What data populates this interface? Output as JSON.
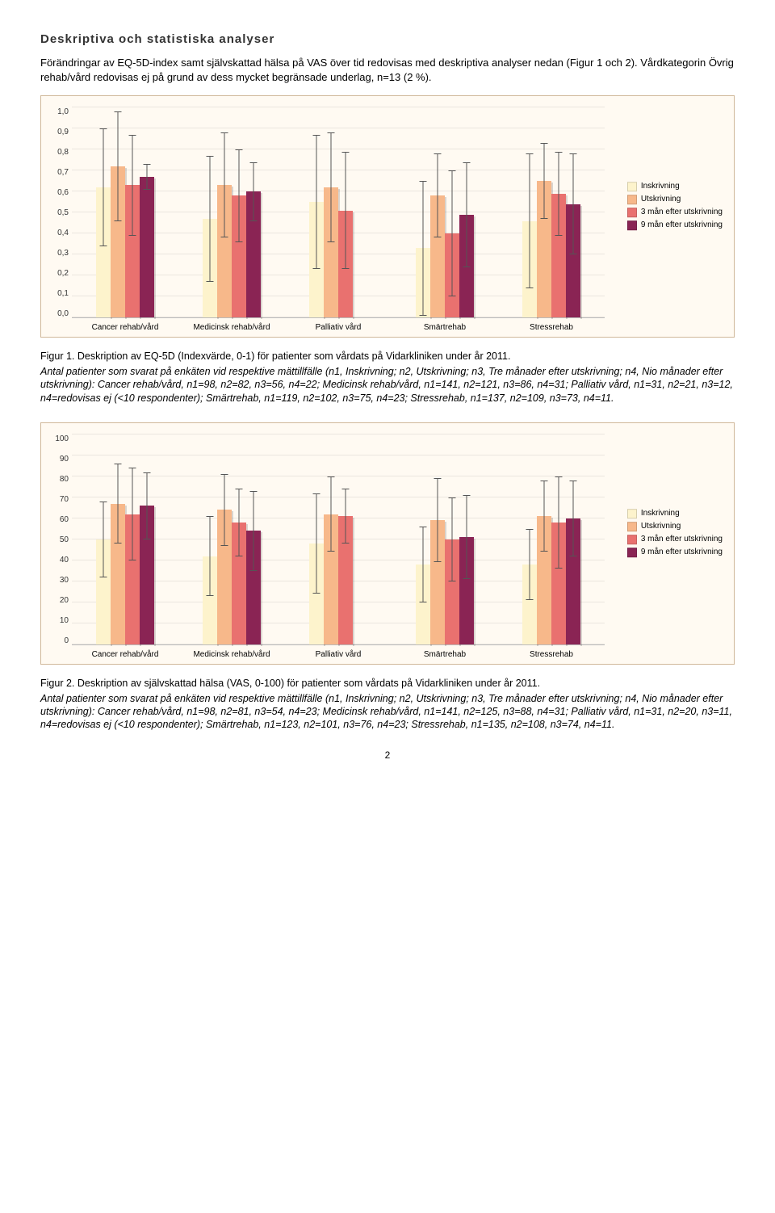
{
  "heading": "Deskriptiva och statistiska analyser",
  "intro": "Förändringar av EQ-5D-index samt självskattad hälsa på VAS över tid redovisas med deskriptiva analyser nedan (Figur 1 och 2). Vårdkategorin Övrig rehab/vård redovisas ej på grund av dess mycket begränsade underlag, n=13 (2 %).",
  "legend": {
    "items": [
      {
        "label": "Inskrivning",
        "color": "#fdf3cc"
      },
      {
        "label": "Utskrivning",
        "color": "#f7b88a"
      },
      {
        "label": "3 mån efter utskrivning",
        "color": "#e9716f"
      },
      {
        "label": "9 mån efter utskrivning",
        "color": "#8a2454"
      }
    ]
  },
  "chart1": {
    "type": "bar",
    "ymin": 0,
    "ymax": 1,
    "ystep": 0.1,
    "categories": [
      "Cancer rehab/vård",
      "Medicinsk rehab/vård",
      "Palliativ vård",
      "Smärtrehab",
      "Stressrehab"
    ],
    "series_colors": [
      "#fdf3cc",
      "#f7b88a",
      "#e9716f",
      "#8a2454"
    ],
    "values": [
      [
        0.62,
        0.72,
        0.63,
        0.67
      ],
      [
        0.47,
        0.63,
        0.58,
        0.6
      ],
      [
        0.55,
        0.62,
        0.51,
        null
      ],
      [
        0.33,
        0.58,
        0.4,
        0.49
      ],
      [
        0.46,
        0.65,
        0.59,
        0.54
      ]
    ],
    "errors": [
      [
        0.28,
        0.26,
        0.24,
        0.06
      ],
      [
        0.3,
        0.25,
        0.22,
        0.14
      ],
      [
        0.32,
        0.26,
        0.28,
        null
      ],
      [
        0.32,
        0.2,
        0.3,
        0.25
      ],
      [
        0.32,
        0.18,
        0.2,
        0.24
      ]
    ],
    "caption_title": "Figur 1. Deskription av EQ-5D (Indexvärde, 0-1) för patienter som vårdats på Vidarkliniken under år 2011.",
    "caption": "Antal patienter som svarat på enkäten vid respektive mättillfälle (n1, Inskrivning; n2, Utskrivning; n3, Tre månader efter utskrivning; n4, Nio månader efter utskrivning): Cancer rehab/vård, n1=98, n2=82, n3=56, n4=22; Medicinsk rehab/vård, n1=141, n2=121, n3=86, n4=31; Palliativ vård, n1=31, n2=21, n3=12, n4=redovisas ej (<10 respondenter); Smärtrehab, n1=119, n2=102, n3=75, n4=23; Stressrehab, n1=137, n2=109, n3=73, n4=11."
  },
  "chart2": {
    "type": "bar",
    "ymin": 0,
    "ymax": 100,
    "ystep": 10,
    "categories": [
      "Cancer rehab/vård",
      "Medicinsk rehab/vård",
      "Palliativ vård",
      "Smärtrehab",
      "Stressrehab"
    ],
    "series_colors": [
      "#fdf3cc",
      "#f7b88a",
      "#e9716f",
      "#8a2454"
    ],
    "values": [
      [
        50,
        67,
        62,
        66
      ],
      [
        42,
        64,
        58,
        54
      ],
      [
        48,
        62,
        61,
        null
      ],
      [
        38,
        59,
        50,
        51
      ],
      [
        38,
        61,
        58,
        60
      ]
    ],
    "errors": [
      [
        18,
        19,
        22,
        16
      ],
      [
        19,
        17,
        16,
        19
      ],
      [
        24,
        18,
        13,
        null
      ],
      [
        18,
        20,
        20,
        20
      ],
      [
        17,
        17,
        22,
        18
      ]
    ],
    "caption_title": "Figur 2. Deskription av självskattad hälsa (VAS, 0-100) för patienter som vårdats på Vidarkliniken under år 2011.",
    "caption": "Antal patienter som svarat på enkäten vid respektive mättillfälle (n1, Inskrivning; n2, Utskrivning; n3, Tre månader efter utskrivning; n4, Nio månader efter utskrivning): Cancer rehab/vård, n1=98, n2=81, n3=54, n4=23; Medicinsk rehab/vård, n1=141, n2=125, n3=88, n4=31; Palliativ vård, n1=31, n2=20, n3=11, n4=redovisas ej (<10 respondenter); Smärtrehab, n1=123, n2=101, n3=76, n4=23; Stressrehab, n1=135, n2=108, n3=74, n4=11."
  },
  "page_number": "2"
}
